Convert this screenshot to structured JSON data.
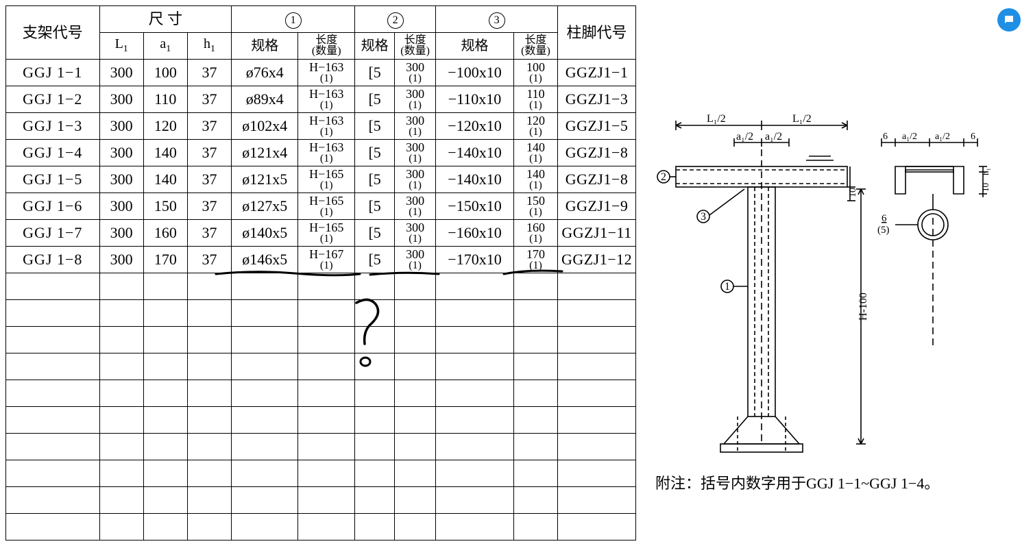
{
  "header": {
    "col_bracket_id": "支架代号",
    "group_dims": "尺 寸",
    "dims": {
      "L1": "L",
      "L1_sub": "1",
      "a1": "a",
      "a1_sub": "1",
      "h1": "h",
      "h1_sub": "1"
    },
    "group1_mark": "1",
    "group2_mark": "2",
    "group3_mark": "3",
    "spec_label": "规格",
    "len_qty_top": "长度",
    "len_qty_bot": "(数量)",
    "col_foot_id": "柱脚代号"
  },
  "rows": [
    {
      "id": "GGJ 1−1",
      "L1": "300",
      "a1": "100",
      "h1": "37",
      "s1": "ø76x4",
      "l1t": "H−163",
      "l1b": "(1)",
      "s2": "[5",
      "l2t": "300",
      "l2b": "(1)",
      "s3": "−100x10",
      "l3t": "100",
      "l3b": "(1)",
      "foot": "GGZJ1−1"
    },
    {
      "id": "GGJ 1−2",
      "L1": "300",
      "a1": "110",
      "h1": "37",
      "s1": "ø89x4",
      "l1t": "H−163",
      "l1b": "(1)",
      "s2": "[5",
      "l2t": "300",
      "l2b": "(1)",
      "s3": "−110x10",
      "l3t": "110",
      "l3b": "(1)",
      "foot": "GGZJ1−3"
    },
    {
      "id": "GGJ 1−3",
      "L1": "300",
      "a1": "120",
      "h1": "37",
      "s1": "ø102x4",
      "l1t": "H−163",
      "l1b": "(1)",
      "s2": "[5",
      "l2t": "300",
      "l2b": "(1)",
      "s3": "−120x10",
      "l3t": "120",
      "l3b": "(1)",
      "foot": "GGZJ1−5"
    },
    {
      "id": "GGJ 1−4",
      "L1": "300",
      "a1": "140",
      "h1": "37",
      "s1": "ø121x4",
      "l1t": "H−163",
      "l1b": "(1)",
      "s2": "[5",
      "l2t": "300",
      "l2b": "(1)",
      "s3": "−140x10",
      "l3t": "140",
      "l3b": "(1)",
      "foot": "GGZJ1−8"
    },
    {
      "id": "GGJ 1−5",
      "L1": "300",
      "a1": "140",
      "h1": "37",
      "s1": "ø121x5",
      "l1t": "H−165",
      "l1b": "(1)",
      "s2": "[5",
      "l2t": "300",
      "l2b": "(1)",
      "s3": "−140x10",
      "l3t": "140",
      "l3b": "(1)",
      "foot": "GGZJ1−8"
    },
    {
      "id": "GGJ 1−6",
      "L1": "300",
      "a1": "150",
      "h1": "37",
      "s1": "ø127x5",
      "l1t": "H−165",
      "l1b": "(1)",
      "s2": "[5",
      "l2t": "300",
      "l2b": "(1)",
      "s3": "−150x10",
      "l3t": "150",
      "l3b": "(1)",
      "foot": "GGZJ1−9"
    },
    {
      "id": "GGJ 1−7",
      "L1": "300",
      "a1": "160",
      "h1": "37",
      "s1": "ø140x5",
      "l1t": "H−165",
      "l1b": "(1)",
      "s2": "[5",
      "l2t": "300",
      "l2b": "(1)",
      "s3": "−160x10",
      "l3t": "160",
      "l3b": "(1)",
      "foot": "GGZJ1−11"
    },
    {
      "id": "GGJ 1−8",
      "L1": "300",
      "a1": "170",
      "h1": "37",
      "s1": "ø146x5",
      "l1t": "H−167",
      "l1b": "(1)",
      "s2": "[5",
      "l2t": "300",
      "l2b": "(1)",
      "s3": "−170x10",
      "l3t": "170",
      "l3b": "(1)",
      "foot": "GGZJ1−12"
    }
  ],
  "empty_row_count": 10,
  "diagram": {
    "labels": {
      "L1_2": "L₁/2",
      "a1_2_left": "a₁/2",
      "a1_2_right": "a₁/2",
      "six": "6",
      "h1": "h₁",
      "ten": "10",
      "H100": "H-100",
      "mark1": "1",
      "mark2": "2",
      "mark3": "3",
      "mark5_top": "6",
      "mark5_bot": "(5)"
    },
    "note": "附注：括号内数字用于GGJ 1−1~GGJ 1−4。",
    "stroke": "#000000",
    "stroke_w": 1.6,
    "dash": "6 4"
  },
  "chat_button": {
    "bg": "#1f8fe6",
    "icon": "chat"
  }
}
